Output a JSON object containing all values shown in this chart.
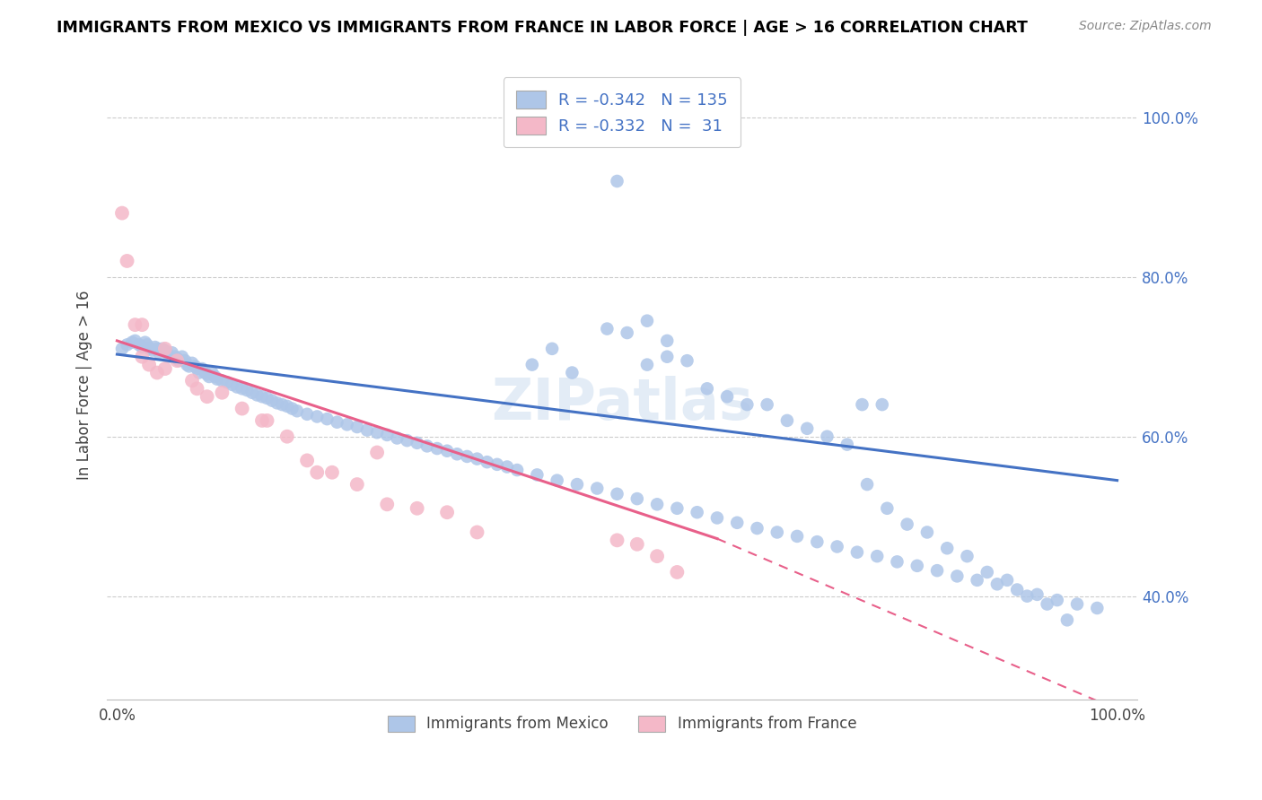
{
  "title": "IMMIGRANTS FROM MEXICO VS IMMIGRANTS FROM FRANCE IN LABOR FORCE | AGE > 16 CORRELATION CHART",
  "source": "Source: ZipAtlas.com",
  "ylabel": "In Labor Force | Age > 16",
  "legend_r1": "-0.342",
  "legend_n1": "135",
  "legend_r2": "-0.332",
  "legend_n2": " 31",
  "mexico_color": "#aec6e8",
  "france_color": "#f4b8c8",
  "mexico_line_color": "#4472c4",
  "france_line_color": "#e8608a",
  "watermark": "ZIPatlas",
  "bottom_label_mexico": "Immigrants from Mexico",
  "bottom_label_france": "Immigrants from France",
  "mexico_x": [
    0.005,
    0.01,
    0.015,
    0.018,
    0.022,
    0.025,
    0.028,
    0.03,
    0.032,
    0.035,
    0.038,
    0.04,
    0.042,
    0.045,
    0.048,
    0.05,
    0.052,
    0.055,
    0.058,
    0.06,
    0.062,
    0.065,
    0.068,
    0.07,
    0.072,
    0.075,
    0.078,
    0.08,
    0.082,
    0.085,
    0.088,
    0.09,
    0.092,
    0.095,
    0.098,
    0.1,
    0.105,
    0.11,
    0.115,
    0.12,
    0.125,
    0.13,
    0.135,
    0.14,
    0.145,
    0.15,
    0.155,
    0.16,
    0.165,
    0.17,
    0.175,
    0.18,
    0.19,
    0.2,
    0.21,
    0.22,
    0.23,
    0.24,
    0.25,
    0.26,
    0.27,
    0.28,
    0.29,
    0.3,
    0.31,
    0.32,
    0.33,
    0.34,
    0.35,
    0.36,
    0.37,
    0.38,
    0.39,
    0.4,
    0.42,
    0.44,
    0.46,
    0.48,
    0.5,
    0.52,
    0.54,
    0.56,
    0.58,
    0.6,
    0.62,
    0.64,
    0.66,
    0.68,
    0.7,
    0.72,
    0.74,
    0.76,
    0.78,
    0.8,
    0.82,
    0.84,
    0.86,
    0.88,
    0.9,
    0.92,
    0.94,
    0.96,
    0.98,
    0.49,
    0.51,
    0.53,
    0.55,
    0.415,
    0.435,
    0.455,
    0.745,
    0.765,
    0.5,
    0.53,
    0.55,
    0.57,
    0.59,
    0.61,
    0.63,
    0.65,
    0.67,
    0.69,
    0.71,
    0.73,
    0.75,
    0.77,
    0.79,
    0.81,
    0.83,
    0.85,
    0.87,
    0.89,
    0.91,
    0.93,
    0.95
  ],
  "mexico_y": [
    0.71,
    0.715,
    0.718,
    0.72,
    0.715,
    0.712,
    0.718,
    0.715,
    0.71,
    0.708,
    0.712,
    0.71,
    0.705,
    0.71,
    0.708,
    0.705,
    0.7,
    0.705,
    0.7,
    0.698,
    0.695,
    0.7,
    0.695,
    0.69,
    0.688,
    0.692,
    0.688,
    0.685,
    0.68,
    0.685,
    0.68,
    0.678,
    0.675,
    0.68,
    0.675,
    0.672,
    0.67,
    0.668,
    0.665,
    0.662,
    0.66,
    0.658,
    0.655,
    0.652,
    0.65,
    0.648,
    0.645,
    0.642,
    0.64,
    0.638,
    0.635,
    0.632,
    0.628,
    0.625,
    0.622,
    0.618,
    0.615,
    0.612,
    0.608,
    0.605,
    0.602,
    0.598,
    0.595,
    0.592,
    0.588,
    0.585,
    0.582,
    0.578,
    0.575,
    0.572,
    0.568,
    0.565,
    0.562,
    0.558,
    0.552,
    0.545,
    0.54,
    0.535,
    0.528,
    0.522,
    0.515,
    0.51,
    0.505,
    0.498,
    0.492,
    0.485,
    0.48,
    0.475,
    0.468,
    0.462,
    0.455,
    0.45,
    0.443,
    0.438,
    0.432,
    0.425,
    0.42,
    0.415,
    0.408,
    0.402,
    0.395,
    0.39,
    0.385,
    0.735,
    0.73,
    0.69,
    0.7,
    0.69,
    0.71,
    0.68,
    0.64,
    0.64,
    0.92,
    0.745,
    0.72,
    0.695,
    0.66,
    0.65,
    0.64,
    0.64,
    0.62,
    0.61,
    0.6,
    0.59,
    0.54,
    0.51,
    0.49,
    0.48,
    0.46,
    0.45,
    0.43,
    0.42,
    0.4,
    0.39,
    0.37
  ],
  "france_x": [
    0.005,
    0.01,
    0.018,
    0.025,
    0.032,
    0.04,
    0.048,
    0.06,
    0.075,
    0.09,
    0.105,
    0.125,
    0.145,
    0.17,
    0.19,
    0.215,
    0.24,
    0.27,
    0.3,
    0.33,
    0.36,
    0.025,
    0.048,
    0.5,
    0.52,
    0.54,
    0.56,
    0.26,
    0.2,
    0.15,
    0.08
  ],
  "france_y": [
    0.88,
    0.82,
    0.74,
    0.7,
    0.69,
    0.68,
    0.685,
    0.695,
    0.67,
    0.65,
    0.655,
    0.635,
    0.62,
    0.6,
    0.57,
    0.555,
    0.54,
    0.515,
    0.51,
    0.505,
    0.48,
    0.74,
    0.71,
    0.47,
    0.465,
    0.45,
    0.43,
    0.58,
    0.555,
    0.62,
    0.66
  ],
  "xlim": [
    -0.01,
    1.02
  ],
  "ylim": [
    0.27,
    1.06
  ],
  "y_ticks": [
    0.4,
    0.6,
    0.8,
    1.0
  ],
  "y_tick_labels": [
    "40.0%",
    "60.0%",
    "80.0%",
    "100.0%"
  ],
  "x_ticks": [
    0.0,
    0.2,
    0.4,
    0.6,
    0.8,
    1.0
  ],
  "x_tick_labels": [
    "0.0%",
    "",
    "",
    "",
    "",
    "100.0%"
  ],
  "mexico_line": [
    0.0,
    1.0,
    0.703,
    0.545
  ],
  "france_line_solid": [
    0.0,
    0.6,
    0.72,
    0.472
  ],
  "france_line_dash": [
    0.6,
    1.0,
    0.472,
    0.258
  ]
}
